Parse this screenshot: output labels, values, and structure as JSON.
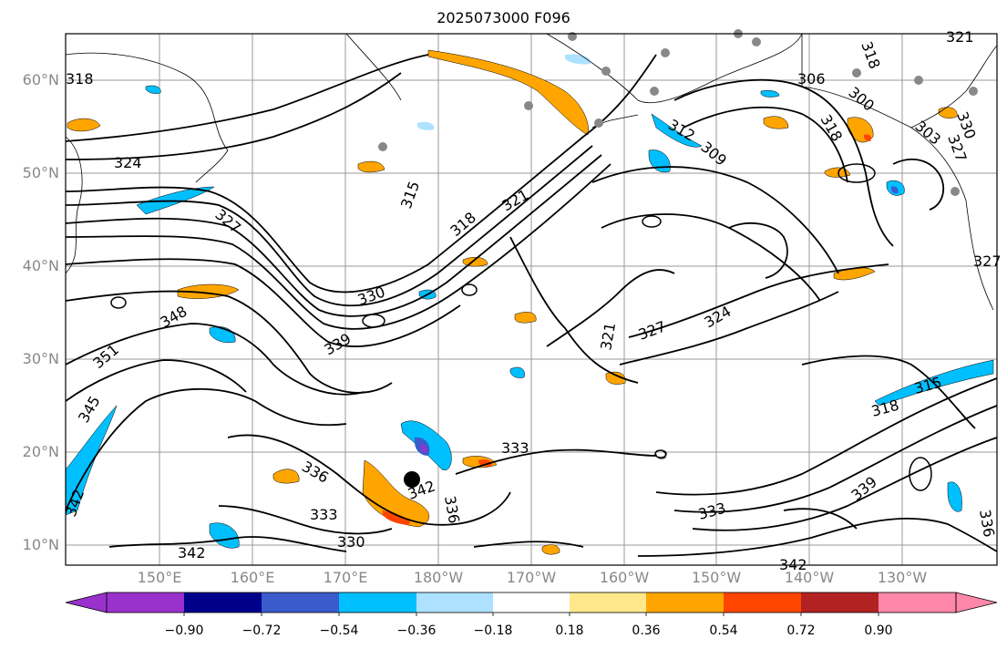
{
  "title": "2025073000 F096",
  "lat_labels": [
    "60°N",
    "50°N",
    "40°N",
    "30°N",
    "20°N",
    "10°N"
  ],
  "lon_labels": [
    "150°E",
    "160°E",
    "170°E",
    "180°W",
    "170°W",
    "160°W",
    "150°W",
    "140°W",
    "130°W"
  ],
  "contour_labels": [
    "318",
    "324",
    "327",
    "345",
    "348",
    "351",
    "342",
    "342",
    "336",
    "333",
    "330",
    "330",
    "339",
    "333",
    "333",
    "336",
    "342",
    "315",
    "318",
    "321",
    "312",
    "309",
    "327",
    "324",
    "321",
    "318",
    "318",
    "315",
    "339",
    "342",
    "336",
    "321",
    "330",
    "327",
    "306",
    "300",
    "303",
    "318",
    "327"
  ],
  "colorbar": {
    "ticks": [
      "−0.90",
      "−0.72",
      "−0.54",
      "−0.36",
      "−0.18",
      "0.18",
      "0.36",
      "0.54",
      "0.72",
      "0.90"
    ],
    "colors": [
      "#9932CC",
      "#00008B",
      "#3A5BCC",
      "#00BFFF",
      "#ADE1FF",
      "#FFFFFF",
      "#FFE88A",
      "#FFA500",
      "#FF4500",
      "#B22222",
      "#FF88AA"
    ]
  }
}
